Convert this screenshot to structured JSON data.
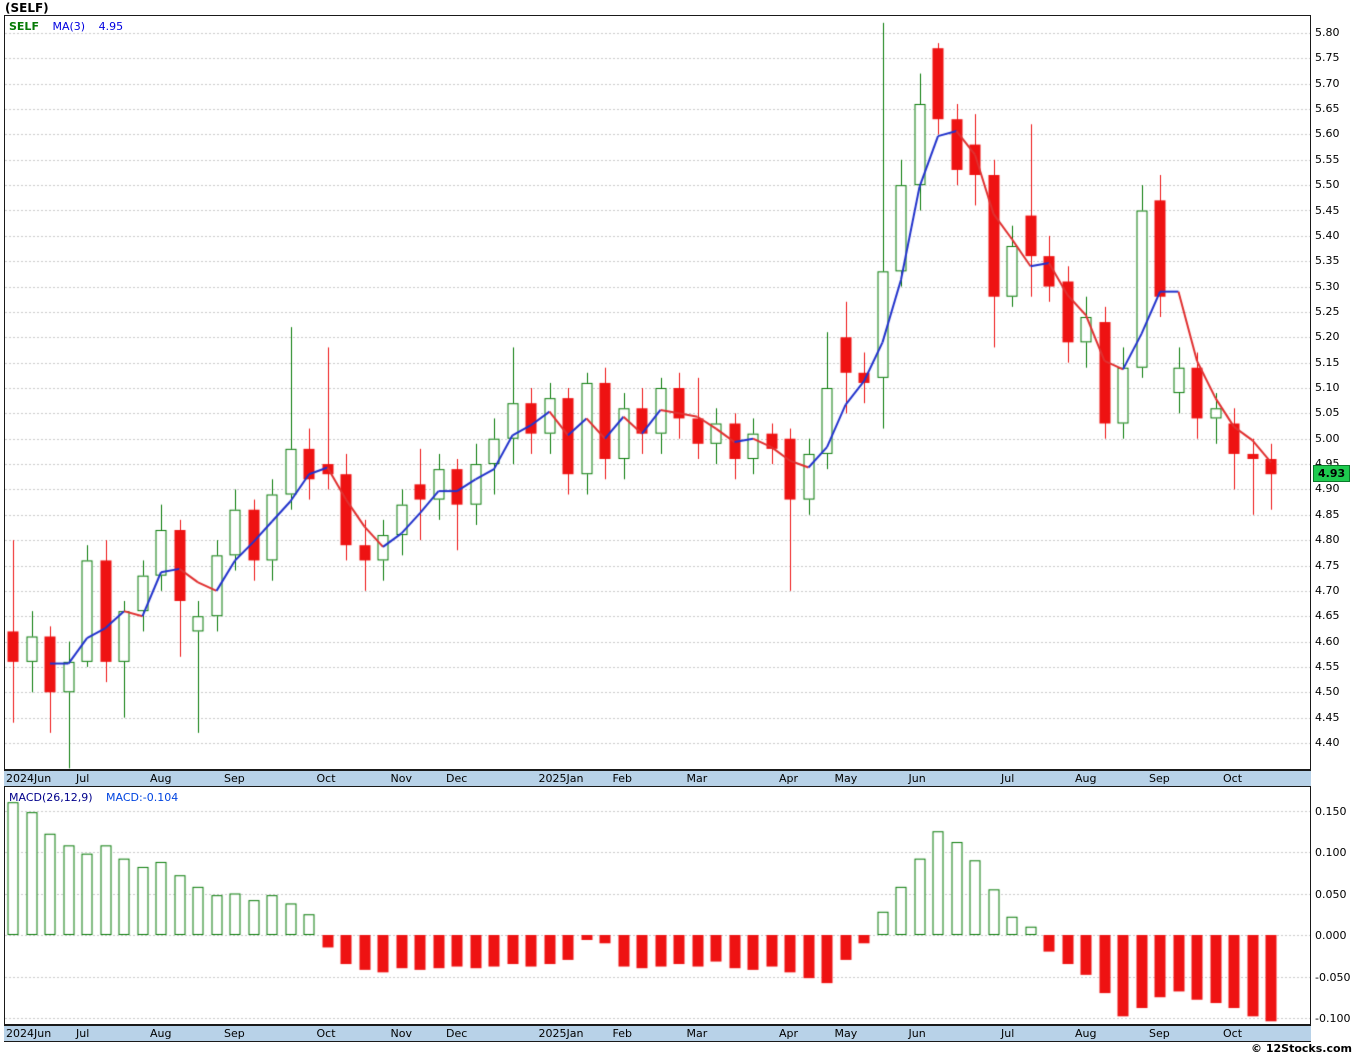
{
  "title": "(SELF)",
  "price_panel": {
    "legend": {
      "symbol": "SELF",
      "ma_label": "MA(3)",
      "ma_value": "4.95"
    },
    "last_price_badge": "4.93",
    "axis_ticks": [
      "5.80",
      "5.75",
      "5.70",
      "5.65",
      "5.60",
      "5.55",
      "5.50",
      "5.45",
      "5.40",
      "5.35",
      "5.30",
      "5.25",
      "5.20",
      "5.15",
      "5.10",
      "5.05",
      "5.00",
      "4.95",
      "4.90",
      "4.85",
      "4.80",
      "4.75",
      "4.70",
      "4.65",
      "4.60",
      "4.55",
      "4.50",
      "4.45",
      "4.40"
    ]
  },
  "macd_panel": {
    "indicator_label": "MACD(26,12,9)",
    "indicator_value": "MACD:-0.104",
    "axis_ticks": [
      "0.150",
      "0.100",
      "0.050",
      "0.000",
      "-0.050",
      "-0.100"
    ]
  },
  "footer": {
    "copyright": "© 12Stocks.com"
  },
  "colors": {
    "up": "#067a06",
    "down": "#ee1212",
    "ma_up": "#2233cc",
    "ma_down": "#e03030",
    "grid": "#c9c9c9",
    "frame": "#1a1a1a",
    "strip_bg": "#b8d2e8",
    "badge_bg": "#1ecb4f",
    "legend_symbol": "#067a06",
    "legend_value": "#0000e0",
    "macd_label": "#00008b",
    "macd_value": "#0044e0"
  },
  "chart_data": [
    {
      "type": "candlestick",
      "title": "(SELF) weekly price with MA(3) overlay",
      "ylabel": "Price",
      "ylim": [
        4.35,
        5.82
      ],
      "last_close": 4.93,
      "overlay": {
        "name": "MA(3)",
        "last_value": 4.95
      },
      "x_months": [
        {
          "label": "2024Jun",
          "week": 0
        },
        {
          "label": "Jul",
          "week": 4
        },
        {
          "label": "Aug",
          "week": 8
        },
        {
          "label": "Sep",
          "week": 12
        },
        {
          "label": "Oct",
          "week": 17
        },
        {
          "label": "Nov",
          "week": 21
        },
        {
          "label": "Dec",
          "week": 24
        },
        {
          "label": "2025Jan",
          "week": 29
        },
        {
          "label": "Feb",
          "week": 33
        },
        {
          "label": "Mar",
          "week": 37
        },
        {
          "label": "Apr",
          "week": 42
        },
        {
          "label": "May",
          "week": 45
        },
        {
          "label": "Jun",
          "week": 49
        },
        {
          "label": "Jul",
          "week": 54
        },
        {
          "label": "Aug",
          "week": 58
        },
        {
          "label": "Sep",
          "week": 62
        },
        {
          "label": "Oct",
          "week": 66
        }
      ],
      "candles": [
        [
          4.62,
          4.8,
          4.44,
          4.56
        ],
        [
          4.56,
          4.66,
          4.5,
          4.61
        ],
        [
          4.61,
          4.63,
          4.42,
          4.5
        ],
        [
          4.5,
          4.6,
          4.35,
          4.56
        ],
        [
          4.56,
          4.79,
          4.55,
          4.76
        ],
        [
          4.76,
          4.8,
          4.52,
          4.56
        ],
        [
          4.56,
          4.68,
          4.45,
          4.66
        ],
        [
          4.66,
          4.76,
          4.62,
          4.73
        ],
        [
          4.73,
          4.87,
          4.7,
          4.82
        ],
        [
          4.82,
          4.84,
          4.57,
          4.68
        ],
        [
          4.62,
          4.68,
          4.42,
          4.65
        ],
        [
          4.65,
          4.8,
          4.62,
          4.77
        ],
        [
          4.77,
          4.9,
          4.74,
          4.86
        ],
        [
          4.86,
          4.88,
          4.72,
          4.76
        ],
        [
          4.76,
          4.92,
          4.72,
          4.89
        ],
        [
          4.89,
          5.22,
          4.86,
          4.98
        ],
        [
          4.98,
          5.02,
          4.88,
          4.92
        ],
        [
          4.95,
          5.18,
          4.9,
          4.93
        ],
        [
          4.93,
          4.97,
          4.76,
          4.79
        ],
        [
          4.79,
          4.84,
          4.7,
          4.76
        ],
        [
          4.76,
          4.84,
          4.72,
          4.81
        ],
        [
          4.81,
          4.9,
          4.77,
          4.87
        ],
        [
          4.91,
          4.98,
          4.8,
          4.88
        ],
        [
          4.88,
          4.97,
          4.84,
          4.94
        ],
        [
          4.94,
          4.96,
          4.78,
          4.87
        ],
        [
          4.87,
          4.99,
          4.83,
          4.95
        ],
        [
          4.95,
          5.04,
          4.89,
          5.0
        ],
        [
          5.0,
          5.18,
          4.95,
          5.07
        ],
        [
          5.07,
          5.1,
          4.97,
          5.01
        ],
        [
          5.01,
          5.11,
          4.97,
          5.08
        ],
        [
          5.08,
          5.1,
          4.89,
          4.93
        ],
        [
          4.93,
          5.13,
          4.89,
          5.11
        ],
        [
          5.11,
          5.14,
          4.92,
          4.96
        ],
        [
          4.96,
          5.09,
          4.92,
          5.06
        ],
        [
          5.06,
          5.1,
          4.97,
          5.01
        ],
        [
          5.01,
          5.12,
          4.97,
          5.1
        ],
        [
          5.1,
          5.13,
          5.0,
          5.04
        ],
        [
          5.04,
          5.12,
          4.96,
          4.99
        ],
        [
          4.99,
          5.06,
          4.95,
          5.03
        ],
        [
          5.03,
          5.05,
          4.92,
          4.96
        ],
        [
          4.96,
          5.04,
          4.93,
          5.01
        ],
        [
          5.01,
          5.03,
          4.95,
          4.98
        ],
        [
          5.0,
          5.02,
          4.7,
          4.88
        ],
        [
          4.88,
          5.0,
          4.85,
          4.97
        ],
        [
          4.97,
          5.21,
          4.94,
          5.1
        ],
        [
          5.2,
          5.27,
          5.05,
          5.13
        ],
        [
          5.13,
          5.17,
          5.07,
          5.11
        ],
        [
          5.12,
          5.82,
          5.02,
          5.33
        ],
        [
          5.33,
          5.55,
          5.3,
          5.5
        ],
        [
          5.5,
          5.72,
          5.45,
          5.66
        ],
        [
          5.77,
          5.78,
          5.6,
          5.63
        ],
        [
          5.63,
          5.66,
          5.5,
          5.53
        ],
        [
          5.58,
          5.64,
          5.46,
          5.52
        ],
        [
          5.52,
          5.55,
          5.18,
          5.28
        ],
        [
          5.28,
          5.42,
          5.26,
          5.38
        ],
        [
          5.44,
          5.62,
          5.28,
          5.36
        ],
        [
          5.36,
          5.4,
          5.27,
          5.3
        ],
        [
          5.31,
          5.34,
          5.15,
          5.19
        ],
        [
          5.19,
          5.28,
          5.14,
          5.24
        ],
        [
          5.23,
          5.26,
          5.0,
          5.03
        ],
        [
          5.03,
          5.18,
          5.0,
          5.14
        ],
        [
          5.14,
          5.5,
          5.12,
          5.45
        ],
        [
          5.47,
          5.52,
          5.24,
          5.28
        ],
        [
          5.09,
          5.18,
          5.05,
          5.14
        ],
        [
          5.14,
          5.17,
          5.0,
          5.04
        ],
        [
          5.04,
          5.09,
          4.99,
          5.06
        ],
        [
          5.03,
          5.06,
          4.9,
          4.97
        ],
        [
          4.97,
          5.0,
          4.85,
          4.96
        ],
        [
          4.96,
          4.99,
          4.86,
          4.93
        ]
      ]
    },
    {
      "type": "bar",
      "title": "MACD(26,12,9) histogram",
      "ylim": [
        -0.105,
        0.175
      ],
      "last_value": -0.104,
      "values": [
        0.16,
        0.148,
        0.122,
        0.108,
        0.098,
        0.108,
        0.092,
        0.082,
        0.088,
        0.072,
        0.058,
        0.048,
        0.05,
        0.042,
        0.048,
        0.038,
        0.025,
        -0.015,
        -0.035,
        -0.042,
        -0.045,
        -0.04,
        -0.042,
        -0.04,
        -0.038,
        -0.04,
        -0.038,
        -0.035,
        -0.038,
        -0.035,
        -0.03,
        -0.006,
        -0.01,
        -0.038,
        -0.04,
        -0.038,
        -0.035,
        -0.038,
        -0.032,
        -0.04,
        -0.042,
        -0.038,
        -0.045,
        -0.052,
        -0.058,
        -0.03,
        -0.01,
        0.028,
        0.058,
        0.092,
        0.125,
        0.112,
        0.09,
        0.055,
        0.022,
        0.01,
        -0.02,
        -0.035,
        -0.048,
        -0.07,
        -0.098,
        -0.088,
        -0.075,
        -0.068,
        -0.078,
        -0.082,
        -0.088,
        -0.098,
        -0.104
      ]
    }
  ]
}
